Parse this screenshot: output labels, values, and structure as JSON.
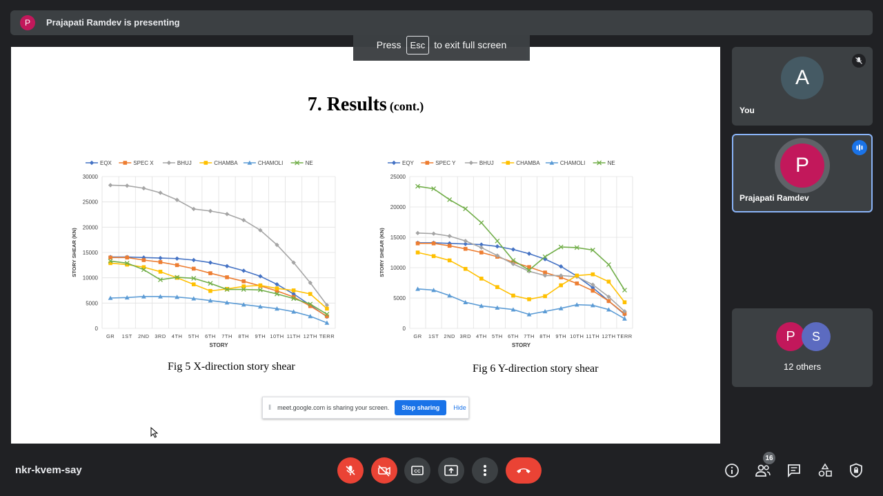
{
  "presenter_bar": {
    "avatar_letter": "P",
    "text": "Prajapati Ramdev is presenting"
  },
  "fullscreen_toast": {
    "press": "Press",
    "key": "Esc",
    "rest": "to exit full screen"
  },
  "slide": {
    "title": "7. Results",
    "title_suffix": "(cont.)"
  },
  "charts": [
    {
      "caption": "Fig 5 X-direction story shear"
    },
    {
      "caption": "Fig 6 Y-direction story shear"
    }
  ],
  "chart_data": [
    {
      "type": "line",
      "title": "",
      "xlabel": "STORY",
      "ylabel": "STORY SHEAR (KN)",
      "ylim": [
        0,
        30000
      ],
      "yticks": [
        0,
        5000,
        10000,
        15000,
        20000,
        25000,
        30000
      ],
      "categories": [
        "GR",
        "1ST",
        "2ND",
        "3RD",
        "4TH",
        "5TH",
        "6TH",
        "7TH",
        "8TH",
        "9TH",
        "10TH",
        "11TH",
        "12TH",
        "TERR"
      ],
      "legend_position": "top",
      "grid": true,
      "series": [
        {
          "name": "EQX",
          "color": "#4472c4",
          "marker": "diamond",
          "values": [
            14100,
            14100,
            14000,
            13900,
            13800,
            13500,
            13000,
            12300,
            11400,
            10300,
            8700,
            6800,
            4600,
            2300
          ]
        },
        {
          "name": "SPEC X",
          "color": "#ed7d31",
          "marker": "square",
          "values": [
            14000,
            14000,
            13500,
            13100,
            12500,
            11800,
            10900,
            10100,
            9300,
            8400,
            7400,
            6200,
            4400,
            2400
          ]
        },
        {
          "name": "BHUJ",
          "color": "#a5a5a5",
          "marker": "diamond",
          "values": [
            28300,
            28200,
            27700,
            26800,
            25400,
            23600,
            23200,
            22600,
            21400,
            19400,
            16500,
            13000,
            9000,
            4600
          ]
        },
        {
          "name": "CHAMBA",
          "color": "#ffc000",
          "marker": "square",
          "values": [
            12900,
            12600,
            12100,
            11200,
            10000,
            8700,
            7400,
            7800,
            8300,
            8500,
            7900,
            7500,
            6800,
            3900
          ]
        },
        {
          "name": "CHAMOLI",
          "color": "#5b9bd5",
          "marker": "triangle",
          "values": [
            6000,
            6100,
            6300,
            6300,
            6200,
            5900,
            5500,
            5100,
            4700,
            4300,
            3900,
            3300,
            2400,
            1100
          ]
        },
        {
          "name": "NE",
          "color": "#70ad47",
          "marker": "x",
          "values": [
            13300,
            12900,
            11600,
            9600,
            10100,
            9900,
            8900,
            7700,
            7700,
            7600,
            6800,
            5900,
            4800,
            2800
          ]
        }
      ]
    },
    {
      "type": "line",
      "title": "",
      "xlabel": "STORY",
      "ylabel": "STORY SHEAR (KN)",
      "ylim": [
        0,
        25000
      ],
      "yticks": [
        0,
        5000,
        10000,
        15000,
        20000,
        25000
      ],
      "categories": [
        "GR",
        "1ST",
        "2ND",
        "3RD",
        "4TH",
        "5TH",
        "6TH",
        "7TH",
        "8TH",
        "9TH",
        "10TH",
        "11TH",
        "12TH",
        "TERR"
      ],
      "legend_position": "top",
      "grid": true,
      "series": [
        {
          "name": "EQY",
          "color": "#4472c4",
          "marker": "diamond",
          "values": [
            14100,
            14100,
            14000,
            13900,
            13800,
            13500,
            13000,
            12300,
            11400,
            10200,
            8600,
            6700,
            4500,
            2300
          ]
        },
        {
          "name": "SPEC Y",
          "color": "#ed7d31",
          "marker": "square",
          "values": [
            14000,
            14000,
            13600,
            13100,
            12500,
            11800,
            10900,
            10100,
            9200,
            8400,
            7400,
            6200,
            4500,
            2400
          ]
        },
        {
          "name": "BHUJ",
          "color": "#a5a5a5",
          "marker": "diamond",
          "values": [
            15700,
            15600,
            15200,
            14400,
            13300,
            12000,
            10600,
            9400,
            8700,
            8700,
            8500,
            7200,
            5200,
            2800
          ]
        },
        {
          "name": "CHAMBA",
          "color": "#ffc000",
          "marker": "square",
          "values": [
            12500,
            11900,
            11200,
            9800,
            8200,
            6800,
            5400,
            4800,
            5300,
            7100,
            8700,
            8900,
            7700,
            4300
          ]
        },
        {
          "name": "CHAMOLI",
          "color": "#5b9bd5",
          "marker": "triangle",
          "values": [
            6500,
            6300,
            5400,
            4300,
            3700,
            3400,
            3100,
            2300,
            2800,
            3300,
            3900,
            3800,
            3100,
            1600
          ]
        },
        {
          "name": "NE",
          "color": "#70ad47",
          "marker": "x",
          "values": [
            23400,
            23000,
            21200,
            19700,
            17400,
            14400,
            11200,
            9600,
            11800,
            13400,
            13300,
            12900,
            10500,
            6300
          ]
        }
      ]
    }
  ],
  "share_bar": {
    "message": "meet.google.com is sharing your screen.",
    "stop_label": "Stop sharing",
    "hide_label": "Hide"
  },
  "tiles": {
    "you": {
      "letter": "A",
      "name": "You"
    },
    "presenter": {
      "letter": "P",
      "name": "Prajapati Ramdev"
    },
    "others": {
      "letter1": "P",
      "letter2": "S",
      "label": "12 others"
    }
  },
  "meeting_code": "nkr-kvem-say",
  "people_count": "16",
  "colors": {
    "background": "#202124",
    "panel": "#3c4043",
    "red": "#ea4335",
    "blue": "#1a73e8",
    "active_border": "#8ab4f8"
  }
}
